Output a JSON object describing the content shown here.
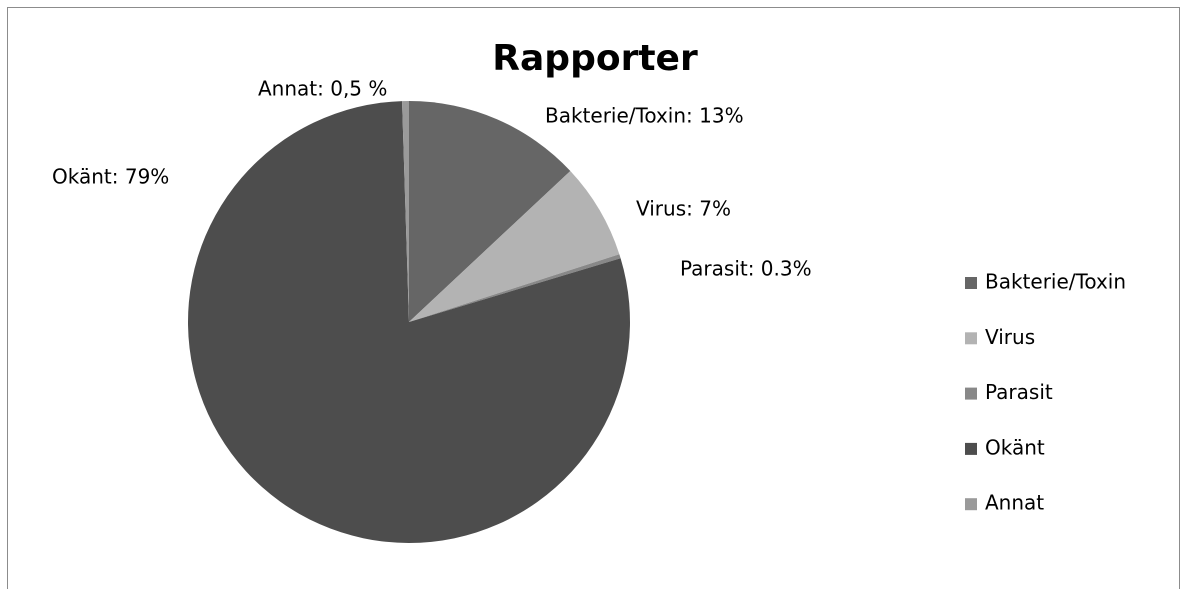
{
  "chart_data": {
    "type": "pie",
    "title": "Rapporter",
    "categories": [
      "Bakterie/Toxin",
      "Virus",
      "Parasit",
      "Okänt",
      "Annat"
    ],
    "values": [
      13,
      7,
      0.3,
      79,
      0.5
    ],
    "value_labels": [
      "Bakterie/Toxin: 13%",
      "Virus: 7%",
      "Parasit: 0.3%",
      "Okänt: 79%",
      "Annat: 0,5 %"
    ],
    "colors": [
      "#666666",
      "#b3b3b3",
      "#888888",
      "#4d4d4d",
      "#9a9a9a"
    ],
    "legend": "right"
  }
}
